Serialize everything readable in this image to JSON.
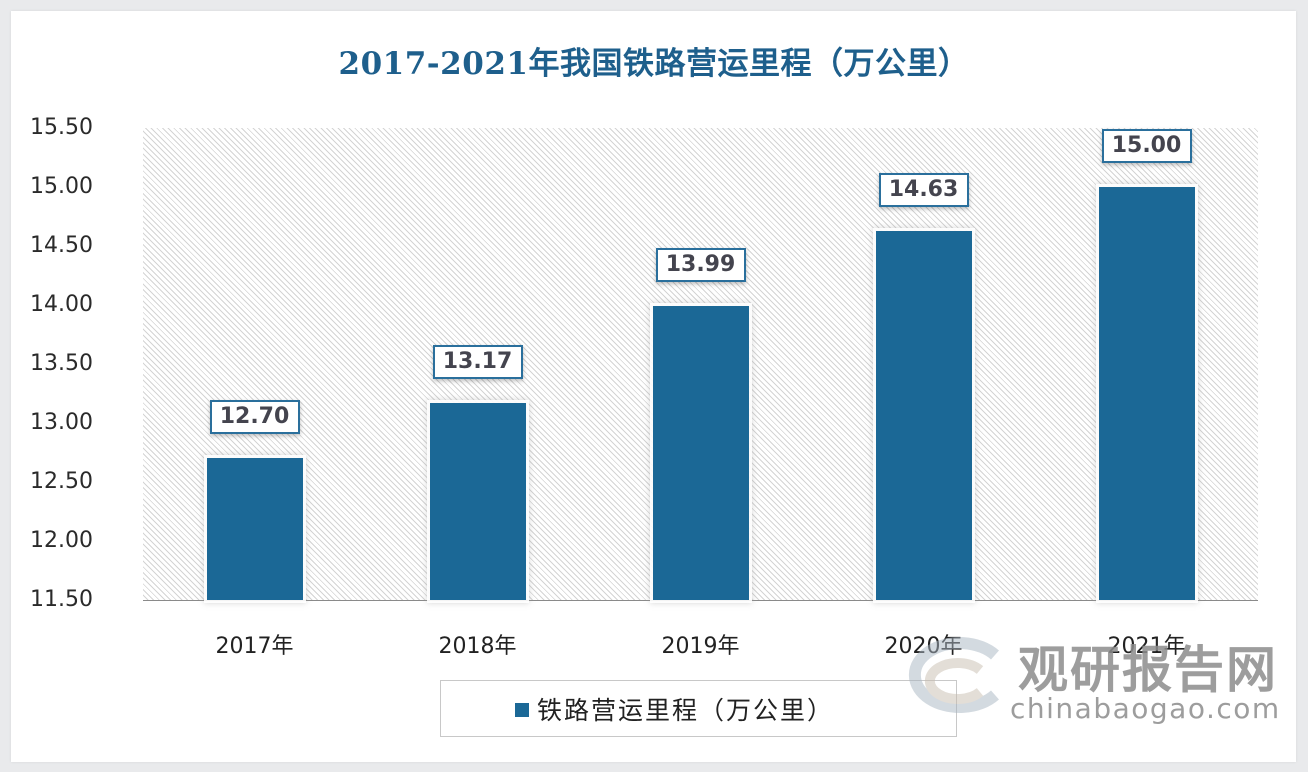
{
  "chart_data": {
    "type": "bar",
    "title": "2017-2021年我国铁路营运里程（万公里）",
    "categories": [
      "2017年",
      "2018年",
      "2019年",
      "2020年",
      "2021年"
    ],
    "series": [
      {
        "name": "铁路营运里程（万公里）",
        "values": [
          12.7,
          13.17,
          13.99,
          14.63,
          15.0
        ],
        "color": "#1b6896"
      }
    ],
    "value_labels": [
      "12.70",
      "13.17",
      "13.99",
      "14.63",
      "15.00"
    ],
    "xlabel": "",
    "ylabel": "",
    "ylim": [
      11.5,
      15.5
    ],
    "yticks": [
      "15.50",
      "15.00",
      "14.50",
      "14.00",
      "13.50",
      "13.00",
      "12.50",
      "12.00",
      "11.50"
    ],
    "grid": false,
    "legend_position": "bottom"
  },
  "legend": {
    "label": "铁路营运里程（万公里）"
  },
  "watermark": {
    "cn": "观研报告网",
    "en": "chinabaogao.com"
  }
}
